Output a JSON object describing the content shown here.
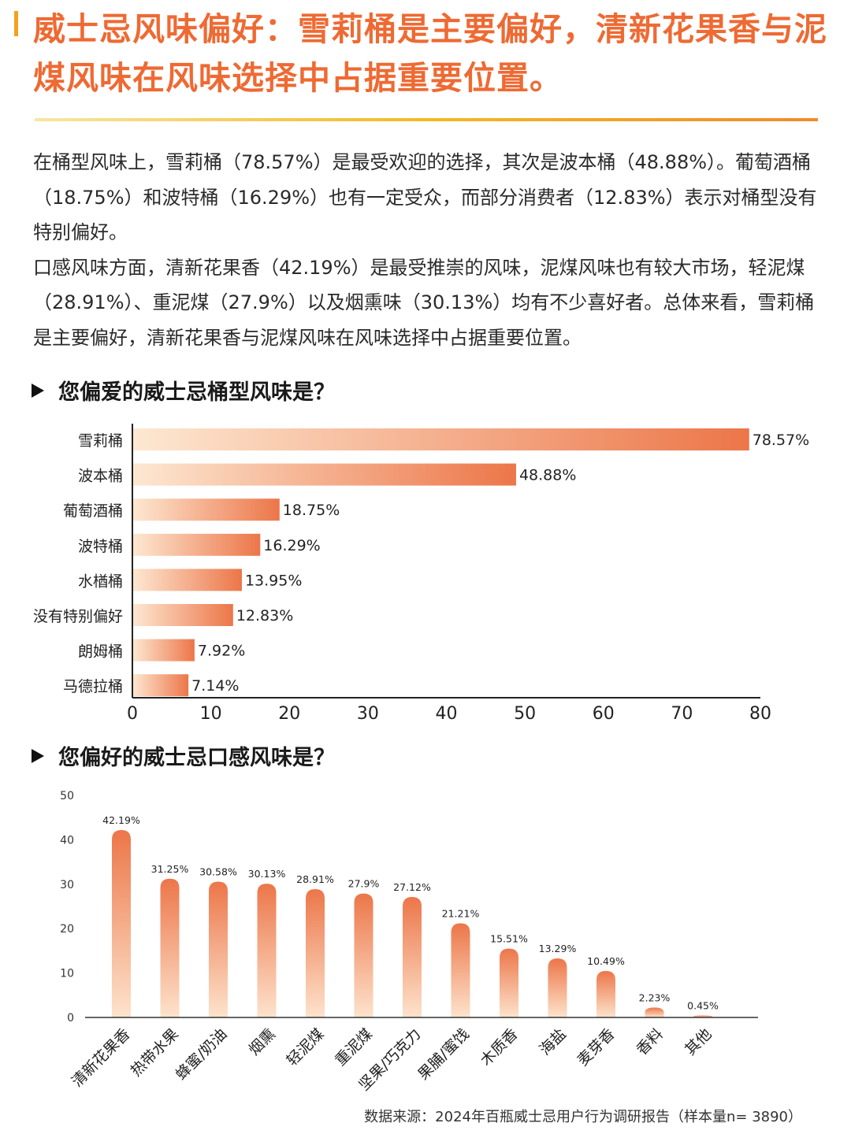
{
  "title": "威士忌风味偏好：雪莉桶是主要偏好，清新花果香与泥煤风味在风味选择中占据重要位置。",
  "paragraphs": [
    "在桶型风味上，雪莉桶（78.57%）是最受欢迎的选择，其次是波本桶（48.88%）。葡萄酒桶（18.75%）和波特桶（16.29%）也有一定受众，而部分消费者（12.83%）表示对桶型没有特别偏好。",
    "口感风味方面，清新花果香（42.19%）是最受推崇的风味，泥煤风味也有较大市场，轻泥煤（28.91%）、重泥煤（27.9%）以及烟熏味（30.13%）均有不少喜好者。总体来看，雪莉桶是主要偏好，清新花果香与泥煤风味在风味选择中占据重要位置。"
  ],
  "footer": "数据来源：2024年百瓶威士忌用户行为调研报告（样本量n= 3890）",
  "colors": {
    "accent": "#ee6a33",
    "bar_light": "#fde6cf",
    "bar_dark": "#ec7a4c",
    "rule": "#f4b822"
  },
  "chart_data": [
    {
      "type": "bar",
      "orientation": "horizontal",
      "title": "您偏爱的威士忌桶型风味是？",
      "categories": [
        "雪莉桶",
        "波本桶",
        "葡萄酒桶",
        "波特桶",
        "水楢桶",
        "没有特别偏好",
        "朗姆桶",
        "马德拉桶"
      ],
      "values": [
        78.57,
        48.88,
        18.75,
        16.29,
        13.95,
        12.83,
        7.92,
        7.14
      ],
      "labels": [
        "78.57%",
        "48.88%",
        "18.75%",
        "16.29%",
        "13.95%",
        "12.83%",
        "7.92%",
        "7.14%"
      ],
      "xlim": [
        0,
        80
      ],
      "xticks": [
        "0",
        "10",
        "20",
        "30",
        "40",
        "50",
        "60",
        "70",
        "80"
      ],
      "grid": false
    },
    {
      "type": "bar",
      "orientation": "vertical",
      "title": "您偏好的威士忌口感风味是？",
      "categories": [
        "清新花果香",
        "热带水果",
        "蜂蜜/奶油",
        "烟熏",
        "轻泥煤",
        "重泥煤",
        "坚果/巧克力",
        "果脯/蜜饯",
        "木质香",
        "海盐",
        "麦芽香",
        "香料",
        "其他"
      ],
      "values": [
        42.19,
        31.25,
        30.58,
        30.13,
        28.91,
        27.9,
        27.12,
        21.21,
        15.51,
        13.29,
        10.49,
        2.23,
        0.45
      ],
      "labels": [
        "42.19%",
        "31.25%",
        "30.58%",
        "30.13%",
        "28.91%",
        "27.9%",
        "27.12%",
        "21.21%",
        "15.51%",
        "13.29%",
        "10.49%",
        "2.23%",
        "0.45%"
      ],
      "ylim": [
        0,
        50
      ],
      "yticks": [
        "0",
        "10",
        "20",
        "30",
        "40",
        "50"
      ],
      "grid": false
    }
  ]
}
